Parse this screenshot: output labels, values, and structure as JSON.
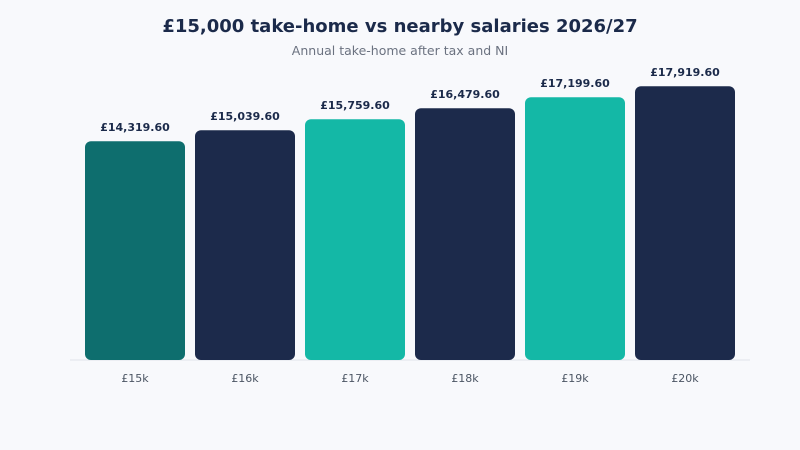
{
  "chart_data": {
    "type": "bar",
    "title": "£15,000 take-home vs nearby salaries 2026/27",
    "subtitle": "Annual take-home after tax and NI",
    "xlabel": "",
    "ylabel": "",
    "categories": [
      "£15k",
      "£16k",
      "£17k",
      "£18k",
      "£19k",
      "£20k"
    ],
    "values": [
      14319.6,
      15039.6,
      15759.6,
      16479.6,
      17199.6,
      17919.6
    ],
    "value_labels": [
      "£14,319.60",
      "£15,039.60",
      "£15,759.60",
      "£16,479.60",
      "£17,199.60",
      "£17,919.60"
    ],
    "bar_colors": [
      "#0e6e6e",
      "#1c2a4b",
      "#14b8a6",
      "#1c2a4b",
      "#14b8a6",
      "#1c2a4b"
    ],
    "ylim": [
      0,
      18000
    ],
    "grid": false,
    "legend": "none"
  }
}
